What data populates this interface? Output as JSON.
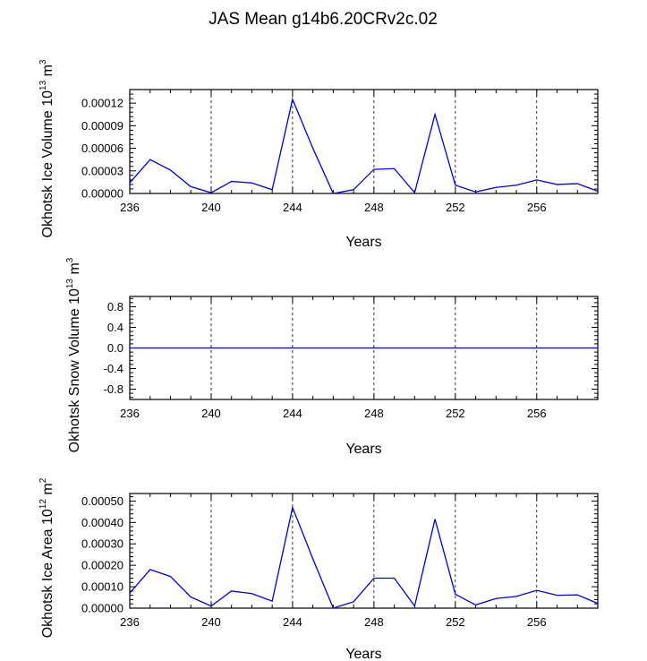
{
  "title": "JAS Mean g14b6.20CRv2c.02",
  "colors": {
    "line": "#0000dd",
    "axis": "#000000",
    "grid": "#000000"
  },
  "chart_data": [
    {
      "type": "line",
      "ylabel": "Okhotsk Ice Volume",
      "yunit_base": "10",
      "yunit_exp": "13",
      "yunit_suffix": "m",
      "yunit_suffix_exp": "3",
      "xlabel": "Years",
      "xlim": [
        236,
        259
      ],
      "ylim": [
        0,
        0.000138
      ],
      "xticks": [
        236,
        240,
        244,
        248,
        252,
        256
      ],
      "xtick_labels": [
        "236",
        "240",
        "244",
        "248",
        "252",
        "256"
      ],
      "yticks": [
        0,
        3e-05,
        6e-05,
        9e-05,
        0.00012
      ],
      "ytick_labels": [
        "0.00000",
        "0.00003",
        "0.00006",
        "0.00009",
        "0.00012"
      ],
      "grid": "vertical dashed at major x ticks",
      "x": [
        236,
        237,
        238,
        239,
        240,
        241,
        242,
        243,
        244,
        245,
        246,
        247,
        248,
        249,
        250,
        251,
        252,
        253,
        254,
        255,
        256,
        257,
        258,
        259
      ],
      "series": [
        {
          "values": [
            1.4e-05,
            4.5e-05,
            3.1e-05,
            9e-06,
            1e-06,
            1.6e-05,
            1.4e-05,
            5e-06,
            0.000125,
            6e-05,
            0.0,
            5e-06,
            3.2e-05,
            3.3e-05,
            1e-06,
            0.000105,
            1.1e-05,
            2e-06,
            8e-06,
            1.1e-05,
            1.8e-05,
            1.2e-05,
            1.3e-05,
            3e-06
          ]
        }
      ]
    },
    {
      "type": "line",
      "ylabel": "Okhotsk Snow Volume",
      "yunit_base": "10",
      "yunit_exp": "13",
      "yunit_suffix": "m",
      "yunit_suffix_exp": "3",
      "xlabel": "Years",
      "xlim": [
        236,
        259
      ],
      "ylim": [
        -1,
        1
      ],
      "xticks": [
        236,
        240,
        244,
        248,
        252,
        256
      ],
      "xtick_labels": [
        "236",
        "240",
        "244",
        "248",
        "252",
        "256"
      ],
      "yticks": [
        -0.8,
        -0.4,
        0,
        0.4,
        0.8
      ],
      "ytick_labels": [
        "-0.8",
        "-0.4",
        "0.0",
        "0.4",
        "0.8"
      ],
      "grid": "vertical dashed at major x ticks",
      "x": [
        236,
        237,
        238,
        239,
        240,
        241,
        242,
        243,
        244,
        245,
        246,
        247,
        248,
        249,
        250,
        251,
        252,
        253,
        254,
        255,
        256,
        257,
        258,
        259
      ],
      "series": [
        {
          "values": [
            0,
            0,
            0,
            0,
            0,
            0,
            0,
            0,
            0,
            0,
            0,
            0,
            0,
            0,
            0,
            0,
            0,
            0,
            0,
            0,
            0,
            0,
            0,
            0
          ]
        }
      ]
    },
    {
      "type": "line",
      "ylabel": "Okhotsk Ice Area",
      "yunit_base": "10",
      "yunit_exp": "12",
      "yunit_suffix": "m",
      "yunit_suffix_exp": "2",
      "xlabel": "Years",
      "xlim": [
        236,
        259
      ],
      "ylim": [
        0,
        0.000535
      ],
      "xticks": [
        236,
        240,
        244,
        248,
        252,
        256
      ],
      "xtick_labels": [
        "236",
        "240",
        "244",
        "248",
        "252",
        "256"
      ],
      "yticks": [
        0,
        0.0001,
        0.0002,
        0.0003,
        0.0004,
        0.0005
      ],
      "ytick_labels": [
        "0.00000",
        "0.00010",
        "0.00020",
        "0.00030",
        "0.00040",
        "0.00050"
      ],
      "grid": "vertical dashed at major x ticks",
      "x": [
        236,
        237,
        238,
        239,
        240,
        241,
        242,
        243,
        244,
        245,
        246,
        247,
        248,
        249,
        250,
        251,
        252,
        253,
        254,
        255,
        256,
        257,
        258,
        259
      ],
      "series": [
        {
          "values": [
            7e-05,
            0.00018,
            0.000148,
            5.2e-05,
            1e-05,
            8e-05,
            6.8e-05,
            3.3e-05,
            0.00047,
            0.00023,
            0.0,
            3e-05,
            0.00014,
            0.00014,
            1e-05,
            0.000415,
            6.5e-05,
            1.5e-05,
            4.5e-05,
            5.5e-05,
            8.3e-05,
            6e-05,
            6.2e-05,
            2.2e-05
          ]
        }
      ]
    }
  ]
}
